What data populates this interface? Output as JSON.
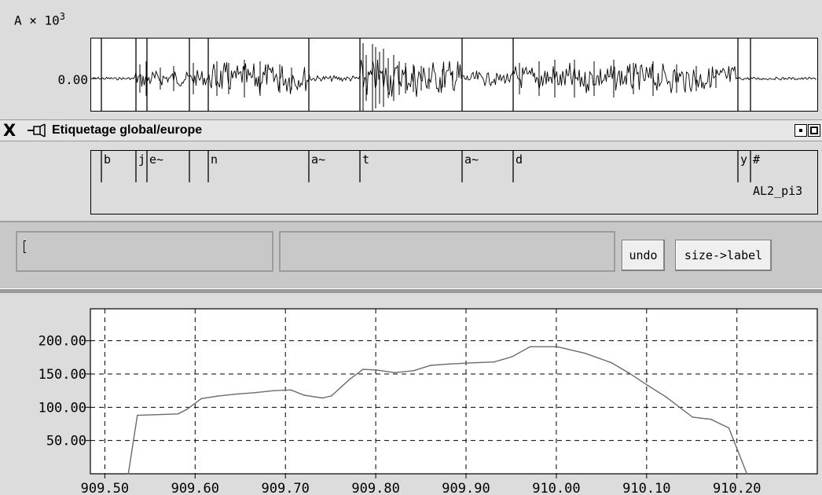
{
  "waveform": {
    "ylabel": "A × 10",
    "ylabel_exp": "3",
    "zero_tick": "0.00"
  },
  "window": {
    "title": "Etiquetage  global/europe",
    "close_glyph": "X"
  },
  "labels": {
    "segments": [
      "b",
      "j",
      "e~",
      "n",
      "a~",
      "t",
      "a~",
      "d",
      "y",
      "#"
    ],
    "file_label": "AL2_pi3"
  },
  "controls": {
    "field1_value": "",
    "field2_value": "",
    "undo_label": "undo",
    "size_label_button": "size->label"
  },
  "chart_data": {
    "type": "line",
    "title": "",
    "xlabel": "",
    "ylabel": "",
    "xlim": [
      909.484,
      910.289
    ],
    "ylim": [
      0,
      248
    ],
    "x_ticks": [
      909.5,
      909.6,
      909.7,
      909.8,
      909.9,
      910.0,
      910.1,
      910.2
    ],
    "x_tick_labels": [
      "909.50",
      "909.60",
      "909.70",
      "909.80",
      "909.90",
      "910.00",
      "910.10",
      "910.20"
    ],
    "y_ticks": [
      50,
      100,
      150,
      200
    ],
    "y_tick_labels": [
      "50.00",
      "100.00",
      "150.00",
      "200.00"
    ],
    "grid": true,
    "series": [
      {
        "x": [
          909.526,
          909.536,
          909.581,
          909.591,
          909.607,
          909.626,
          909.647,
          909.667,
          909.687,
          909.706,
          909.721,
          909.741,
          909.751,
          909.771,
          909.786,
          909.801,
          909.821,
          909.842,
          909.861,
          909.881,
          909.911,
          909.931,
          909.951,
          909.971,
          910.001,
          910.032,
          910.061,
          910.081,
          910.101,
          910.121,
          910.151,
          910.171,
          910.191,
          910.211
        ],
        "y": [
          0,
          88,
          90,
          97,
          113,
          117,
          120,
          122,
          125,
          126,
          118,
          114,
          117,
          142,
          157,
          156,
          152,
          155,
          163,
          165,
          167,
          168,
          176,
          191,
          191,
          181,
          167,
          151,
          133,
          116,
          85,
          82,
          69,
          0
        ]
      }
    ]
  },
  "colors": {
    "panel_bg": "#dcdcdc",
    "plot_bg": "#ffffff",
    "control_bg": "#c8c8c8",
    "ink": "#000000",
    "trace": "#6b6b6b"
  }
}
